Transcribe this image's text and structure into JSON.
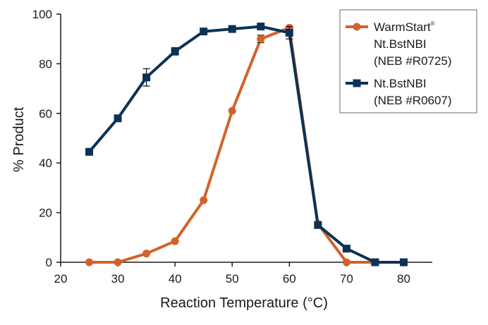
{
  "chart_data": {
    "type": "line",
    "title": "",
    "xlabel": "Reaction Temperature (°C)",
    "ylabel": "% Product",
    "xlim": [
      20,
      85
    ],
    "ylim": [
      0,
      100
    ],
    "xticks": [
      20,
      30,
      40,
      50,
      60,
      70,
      80
    ],
    "yticks": [
      0,
      20,
      40,
      60,
      80,
      100
    ],
    "grid": false,
    "legend_position": "top-right",
    "series": [
      {
        "key": "warmstart",
        "legend_lines": [
          "WarmStart",
          "Nt.BstNBI",
          "(NEB #R0725)"
        ],
        "legend_sup": "®",
        "color": "#d2622a",
        "marker": "circle",
        "x": [
          25,
          30,
          35,
          40,
          45,
          50,
          55,
          60,
          65,
          70,
          75,
          80
        ],
        "y": [
          0,
          0,
          3.5,
          8.5,
          25,
          61,
          90,
          94.5,
          15.5,
          0,
          0,
          0
        ],
        "error": [
          0,
          0,
          0,
          0,
          0,
          0,
          1.5,
          0,
          0,
          0,
          0,
          0
        ]
      },
      {
        "key": "bstnbi",
        "legend_lines": [
          "Nt.BstNBI",
          "(NEB #R0607)"
        ],
        "color": "#0b3256",
        "marker": "square",
        "x": [
          25,
          30,
          35,
          40,
          45,
          50,
          55,
          60,
          65,
          70,
          75,
          80
        ],
        "y": [
          44.5,
          58,
          74.5,
          85,
          93,
          94,
          95,
          92.5,
          15,
          5.5,
          0,
          0
        ],
        "error": [
          0,
          0,
          3.5,
          1.5,
          0,
          0,
          0,
          2.5,
          0,
          0,
          0,
          0
        ]
      }
    ]
  }
}
